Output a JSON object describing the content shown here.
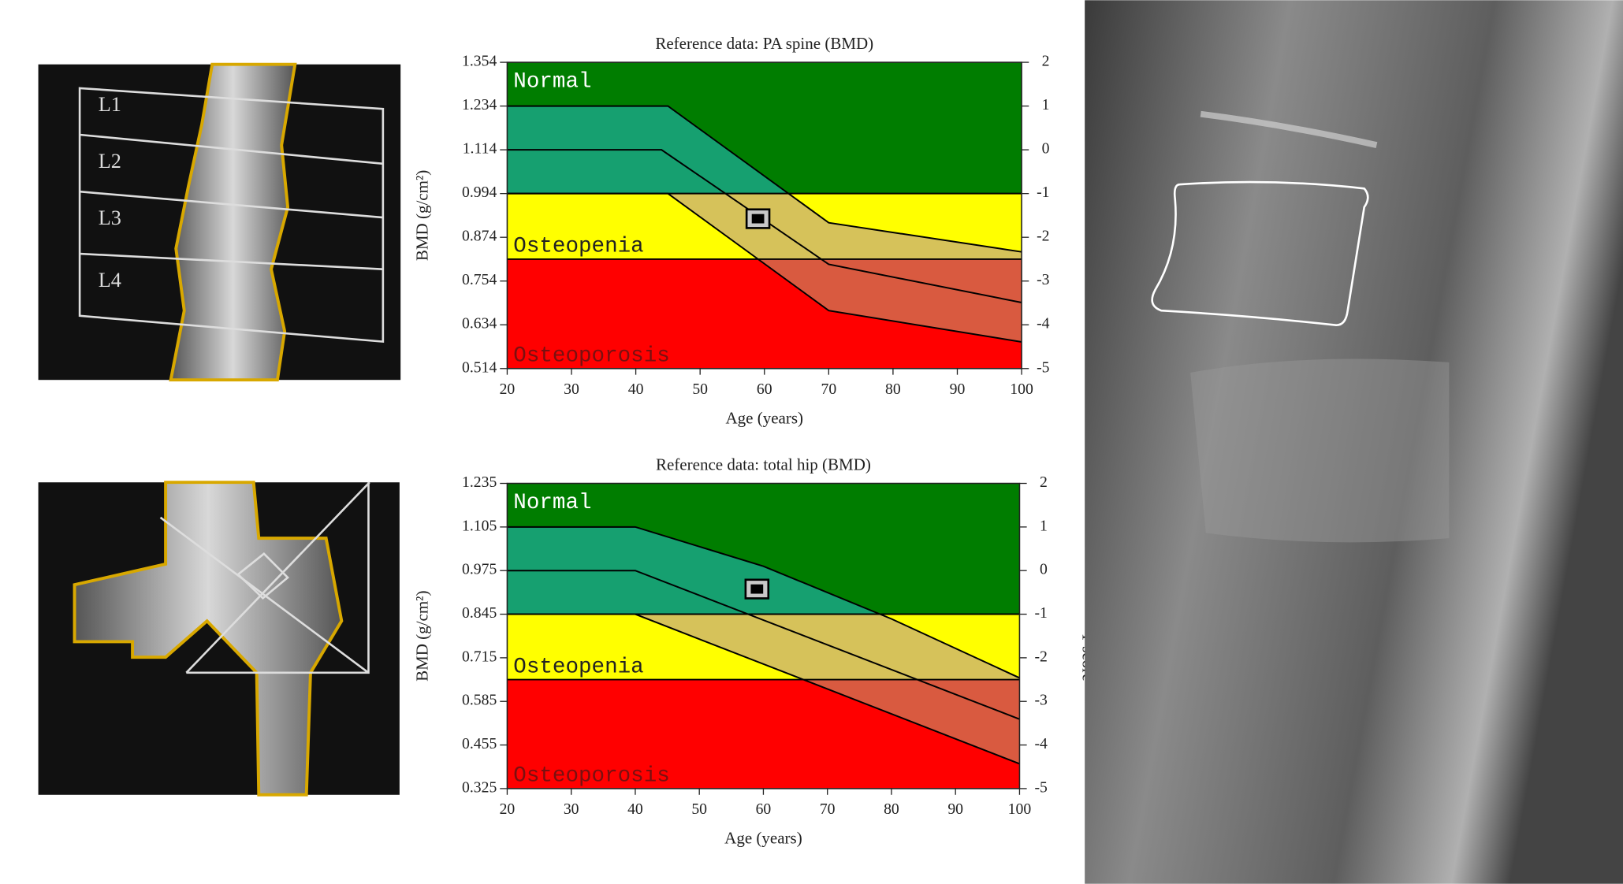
{
  "figure": {
    "scan_labels": [
      "L1",
      "L2",
      "L3",
      "L4"
    ]
  },
  "chart_data": [
    {
      "type": "reference",
      "title": "Reference data: PA spine (BMD)",
      "xlabel": "Age (years)",
      "ylabel": "BMD (g/cm²)",
      "xlim": [
        20,
        100
      ],
      "xticks": [
        20,
        30,
        40,
        50,
        60,
        70,
        80,
        90,
        100
      ],
      "ylim": [
        0.514,
        1.354
      ],
      "yticks": [
        0.514,
        0.634,
        0.754,
        0.874,
        0.994,
        1.114,
        1.234,
        1.354
      ],
      "y2lim": [
        -5,
        2
      ],
      "y2ticks": [
        -5,
        -4,
        -3,
        -2,
        -1,
        0,
        1,
        2
      ],
      "thresholds": [
        -1,
        -2.5
      ],
      "zones": [
        {
          "label": "Normal",
          "color": "#007d00",
          "band_color": "#16a070",
          "label_color": "#ffffff"
        },
        {
          "label": "Osteopenia",
          "color": "#ffff00",
          "band_color": "#d6c25a",
          "label_color": "#222222"
        },
        {
          "label": "Osteoporosis",
          "color": "#ff0000",
          "band_color": "#d95a40",
          "label_color": "#7a1010"
        }
      ],
      "series": [
        {
          "color": "#000000",
          "x": [
            20,
            45,
            70,
            100
          ],
          "values": [
            1.234,
            1.234,
            0.914,
            0.834
          ]
        },
        {
          "color": "#000000",
          "x": [
            20,
            44,
            70,
            100
          ],
          "values": [
            1.114,
            1.114,
            0.8,
            0.695
          ]
        },
        {
          "color": "#000000",
          "x": [
            20,
            45,
            70,
            100
          ],
          "values": [
            0.994,
            0.994,
            0.673,
            0.587
          ]
        }
      ],
      "patient": {
        "x": 59,
        "value": 0.925
      }
    },
    {
      "type": "reference",
      "title": "Reference data: total hip (BMD)",
      "xlabel": "Age (years)",
      "ylabel": "BMD (g/cm²)",
      "y2label": "T-score",
      "xlim": [
        20,
        100
      ],
      "xticks": [
        20,
        30,
        40,
        50,
        60,
        70,
        80,
        90,
        100
      ],
      "ylim": [
        0.325,
        1.235
      ],
      "yticks": [
        0.325,
        0.455,
        0.585,
        0.715,
        0.845,
        0.975,
        1.105,
        1.235
      ],
      "y2lim": [
        -5,
        2
      ],
      "y2ticks": [
        -5,
        -4,
        -3,
        -2,
        -1,
        0,
        1,
        2
      ],
      "thresholds": [
        -1,
        -2.5
      ],
      "zones": [
        {
          "label": "Normal",
          "color": "#007d00",
          "band_color": "#16a070",
          "label_color": "#ffffff"
        },
        {
          "label": "Osteopenia",
          "color": "#ffff00",
          "band_color": "#d6c25a",
          "label_color": "#222222"
        },
        {
          "label": "Osteoporosis",
          "color": "#ff0000",
          "band_color": "#d95a40",
          "label_color": "#7a1010"
        }
      ],
      "series": [
        {
          "color": "#000000",
          "x": [
            20,
            40,
            60,
            80,
            100
          ],
          "values": [
            1.105,
            1.105,
            0.988,
            0.831,
            0.655
          ]
        },
        {
          "color": "#000000",
          "x": [
            20,
            40,
            100
          ],
          "values": [
            0.975,
            0.975,
            0.532
          ]
        },
        {
          "color": "#000000",
          "x": [
            20,
            40,
            100
          ],
          "values": [
            0.845,
            0.845,
            0.399
          ]
        }
      ],
      "patient": {
        "x": 59,
        "value": 0.92
      }
    }
  ]
}
